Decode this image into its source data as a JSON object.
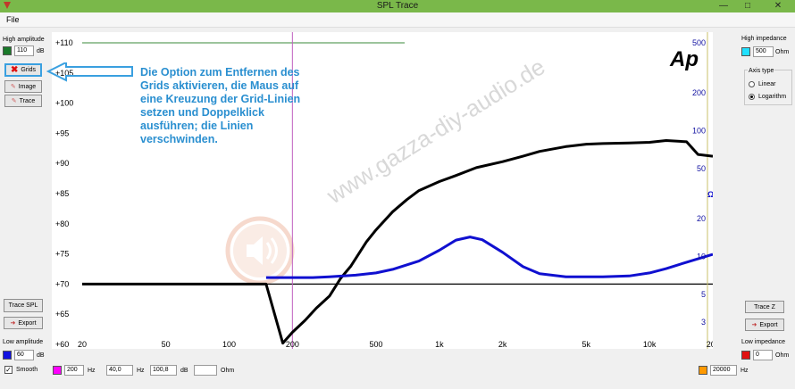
{
  "window": {
    "title": "SPL Trace"
  },
  "menu": {
    "file": "File"
  },
  "left_panel": {
    "high_amplitude_label": "High amplitude",
    "high_amplitude_value": "110",
    "high_amplitude_unit": "dB",
    "high_color": "#1a7a2a",
    "grids_label": "Grids",
    "image_label": "Image",
    "trace_label": "Trace",
    "trace_spl_label": "Trace SPL",
    "export_label": "Export",
    "low_amplitude_label": "Low amplitude",
    "low_amplitude_value": "60",
    "low_amplitude_unit": "dB",
    "low_color": "#1010e0"
  },
  "right_panel": {
    "high_impedance_label": "High impedance",
    "high_impedance_value": "500",
    "high_impedance_unit": "Ohm",
    "high_color": "#20e0ff",
    "axis_type_label": "Axis type",
    "linear_label": "Linear",
    "logarithm_label": "Logarithm",
    "selected": "Logarithm",
    "trace_z_label": "Trace Z",
    "export_label": "Export",
    "low_impedance_label": "Low impedance",
    "low_impedance_value": "0",
    "low_impedance_unit": "Ohm",
    "low_color": "#e01010"
  },
  "bottom_bar": {
    "smooth_label": "Smooth",
    "smooth_checked": true,
    "freq_color": "#ff00ff",
    "freq_value": "200",
    "freq_unit": "Hz",
    "db_value1": "40,0",
    "db_unit1": "Hz",
    "db_value2": "100,8",
    "db_unit2": "dB",
    "ohm_unit": "Ohm",
    "right_color": "#ff9900",
    "right_freq_value": "20000",
    "right_freq_unit": "Hz"
  },
  "annotation": {
    "text": "Die Option zum Entfernen des Grids aktivieren, die Maus auf eine Kreuzung der Grid-Linien setzen und Doppelklick ausführen; die Linien verschwinden."
  },
  "watermark": "www.gazza-diy-audio.de",
  "logo_text": "Ap",
  "chart_data": {
    "type": "line",
    "x_scale": "log",
    "xlim": [
      20,
      20000
    ],
    "ylim": [
      60,
      110
    ],
    "y2lim": [
      2,
      500
    ],
    "y2_scale": "log",
    "y2_label": "Ω",
    "grid": false,
    "x_ticks": [
      "20",
      "50",
      "100",
      "200",
      "500",
      "1k",
      "2k",
      "5k",
      "10k",
      "20k"
    ],
    "y_ticks": [
      "+60",
      "+65",
      "+70",
      "+75",
      "+80",
      "+85",
      "+90",
      "+95",
      "+100",
      "+105",
      "+110"
    ],
    "y2_ticks": [
      "3",
      "5",
      "10",
      "20",
      "50",
      "100",
      "200",
      "500"
    ],
    "cursor_x": 200,
    "guide_y": 70,
    "series": [
      {
        "color": "#000000",
        "axis": "left",
        "points": [
          [
            20,
            70
          ],
          [
            40,
            70
          ],
          [
            60,
            70
          ],
          [
            100,
            70
          ],
          [
            150,
            70
          ],
          [
            180,
            60.2
          ],
          [
            200,
            62
          ],
          [
            230,
            64
          ],
          [
            260,
            66
          ],
          [
            300,
            68
          ],
          [
            340,
            71
          ],
          [
            380,
            73
          ],
          [
            450,
            77
          ],
          [
            500,
            79
          ],
          [
            600,
            82
          ],
          [
            700,
            84
          ],
          [
            800,
            85.5
          ],
          [
            1000,
            87
          ],
          [
            1200,
            88
          ],
          [
            1500,
            89.3
          ],
          [
            2000,
            90.3
          ],
          [
            2500,
            91.2
          ],
          [
            3000,
            92
          ],
          [
            4000,
            92.8
          ],
          [
            5000,
            93.2
          ],
          [
            6000,
            93.3
          ],
          [
            8000,
            93.4
          ],
          [
            10000,
            93.5
          ],
          [
            12000,
            93.8
          ],
          [
            15000,
            93.6
          ],
          [
            17000,
            91.5
          ],
          [
            20000,
            91.2
          ]
        ]
      },
      {
        "color": "#1010d0",
        "axis": "right",
        "points": [
          [
            150,
            6.8
          ],
          [
            200,
            6.8
          ],
          [
            250,
            6.8
          ],
          [
            300,
            6.9
          ],
          [
            400,
            7.1
          ],
          [
            500,
            7.4
          ],
          [
            600,
            7.9
          ],
          [
            800,
            9.2
          ],
          [
            1000,
            11.2
          ],
          [
            1200,
            13.5
          ],
          [
            1400,
            14.3
          ],
          [
            1600,
            13.6
          ],
          [
            2000,
            10.8
          ],
          [
            2500,
            8.3
          ],
          [
            3000,
            7.3
          ],
          [
            4000,
            6.9
          ],
          [
            6000,
            6.9
          ],
          [
            8000,
            7.0
          ],
          [
            10000,
            7.4
          ],
          [
            12000,
            8.0
          ],
          [
            15000,
            9.0
          ],
          [
            20000,
            10.4
          ]
        ]
      }
    ]
  }
}
